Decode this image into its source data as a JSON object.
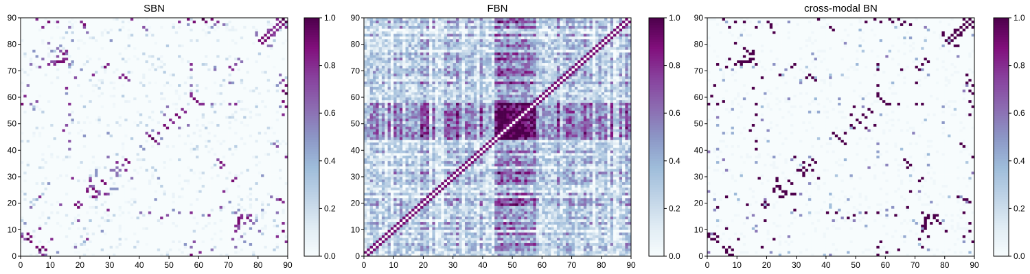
{
  "chart_data": [
    {
      "type": "heatmap",
      "title": "SBN",
      "xlim": [
        0,
        90
      ],
      "ylim": [
        0,
        90
      ],
      "xticks": [
        "0",
        "10",
        "20",
        "30",
        "40",
        "50",
        "60",
        "70",
        "80",
        "90"
      ],
      "yticks": [
        "0",
        "10",
        "20",
        "30",
        "40",
        "50",
        "60",
        "70",
        "80",
        "90"
      ],
      "colorbar": {
        "range": [
          0,
          1
        ],
        "ticks": [
          "0.0",
          "0.2",
          "0.4",
          "0.6",
          "0.8",
          "1.0"
        ],
        "colormap": "BuPu"
      },
      "nodes": 90,
      "pattern": "sparse",
      "connections": [
        [
          2,
          6,
          1.0
        ],
        [
          3,
          5,
          0.9
        ],
        [
          2,
          8,
          0.9
        ],
        [
          7,
          0,
          0.8
        ],
        [
          7,
          3,
          0.9
        ],
        [
          6,
          1,
          0.7
        ],
        [
          8,
          0,
          0.6
        ],
        [
          12,
          1,
          0.5
        ],
        [
          10,
          6,
          0.8
        ],
        [
          18,
          19,
          0.9
        ],
        [
          19,
          20,
          0.8
        ],
        [
          17,
          29,
          0.8
        ],
        [
          19,
          13,
          0.7
        ],
        [
          22,
          24,
          0.9
        ],
        [
          24,
          25,
          0.9
        ],
        [
          25,
          22,
          0.8
        ],
        [
          23,
          26,
          0.7
        ],
        [
          26,
          24,
          0.6
        ],
        [
          25,
          31,
          0.5
        ],
        [
          27,
          28,
          0.9
        ],
        [
          28,
          23,
          0.8
        ],
        [
          29,
          23,
          0.7
        ],
        [
          30,
          25,
          0.5
        ],
        [
          32,
          35,
          0.8
        ],
        [
          35,
          36,
          0.9
        ],
        [
          34,
          34,
          0.7
        ],
        [
          33,
          32,
          0.6
        ],
        [
          37,
          29,
          0.6
        ],
        [
          40,
          41,
          0.5
        ],
        [
          43,
          45,
          0.9
        ],
        [
          44,
          44,
          1.0
        ],
        [
          45,
          43,
          0.9
        ],
        [
          46,
          46,
          0.8
        ],
        [
          42,
          46,
          0.7
        ],
        [
          46,
          42,
          0.6
        ],
        [
          44,
          47,
          0.5
        ],
        [
          48,
          49,
          0.9
        ],
        [
          49,
          48,
          0.9
        ],
        [
          50,
          51,
          0.8
        ],
        [
          51,
          50,
          0.8
        ],
        [
          52,
          53,
          0.9
        ],
        [
          53,
          52,
          0.8
        ],
        [
          54,
          55,
          0.7
        ],
        [
          55,
          54,
          0.8
        ],
        [
          56,
          49,
          0.6
        ],
        [
          48,
          53,
          0.6
        ],
        [
          60,
          57,
          0.8
        ],
        [
          57,
          60,
          0.7
        ],
        [
          65,
          70,
          0.6
        ],
        [
          70,
          71,
          0.8
        ],
        [
          71,
          70,
          0.8
        ],
        [
          72,
          72,
          0.7
        ],
        [
          73,
          13,
          0.9
        ],
        [
          74,
          14,
          0.8
        ],
        [
          75,
          12,
          0.7
        ],
        [
          76,
          15,
          0.6
        ],
        [
          77,
          10,
          0.5
        ],
        [
          73,
          11,
          0.7
        ],
        [
          80,
          81,
          0.9
        ],
        [
          81,
          82,
          0.9
        ],
        [
          82,
          83,
          0.9
        ],
        [
          83,
          84,
          0.8
        ],
        [
          84,
          85,
          0.8
        ],
        [
          85,
          86,
          0.8
        ],
        [
          86,
          87,
          0.8
        ],
        [
          87,
          88,
          0.9
        ],
        [
          88,
          89,
          1.0
        ],
        [
          89,
          86,
          0.8
        ],
        [
          85,
          83,
          0.7
        ],
        [
          83,
          79,
          0.6
        ],
        [
          79,
          84,
          0.6
        ],
        [
          88,
          12,
          0.8
        ],
        [
          86,
          16,
          0.6
        ],
        [
          87,
          21,
          0.9
        ],
        [
          87,
          56,
          0.5
        ],
        [
          12,
          73,
          0.9
        ],
        [
          14,
          73,
          0.9
        ],
        [
          15,
          77,
          0.8
        ],
        [
          11,
          72,
          0.8
        ],
        [
          10,
          73,
          0.7
        ],
        [
          4,
          77,
          0.5
        ],
        [
          3,
          72,
          0.6
        ],
        [
          0,
          57,
          0.9
        ],
        [
          1,
          60,
          0.5
        ],
        [
          5,
          89,
          0.8
        ],
        [
          7,
          86,
          0.8
        ],
        [
          9,
          88,
          0.9
        ],
        [
          20,
          88,
          0.8
        ],
        [
          21,
          86,
          0.7
        ],
        [
          15,
          63,
          0.8
        ],
        [
          33,
          67,
          0.8
        ],
        [
          34,
          68,
          0.8
        ],
        [
          35,
          67,
          0.9
        ],
        [
          36,
          66,
          0.7
        ],
        [
          28,
          71,
          0.9
        ],
        [
          29,
          72,
          0.8
        ],
        [
          37,
          89,
          0.8
        ],
        [
          41,
          86,
          0.7
        ],
        [
          42,
          85,
          0.6
        ],
        [
          56,
          89,
          0.9
        ],
        [
          58,
          88,
          0.9
        ],
        [
          61,
          89,
          1.0
        ],
        [
          62,
          88,
          0.9
        ],
        [
          64,
          89,
          0.9
        ],
        [
          66,
          88,
          0.8
        ],
        [
          68,
          87,
          0.6
        ],
        [
          59,
          58,
          0.9
        ],
        [
          61,
          57,
          0.8
        ],
        [
          64,
          57,
          0.6
        ],
        [
          72,
          57,
          0.8
        ],
        [
          70,
          57,
          0.7
        ],
        [
          71,
          65,
          0.5
        ],
        [
          74,
          73,
          0.6
        ],
        [
          16,
          40,
          0.6
        ],
        [
          16,
          43,
          0.7
        ],
        [
          17,
          51,
          0.5
        ],
        [
          25,
          32,
          0.5
        ],
        [
          32,
          30,
          0.6
        ],
        [
          32,
          31,
          0.6
        ],
        [
          46,
          29,
          0.5
        ],
        [
          45,
          21,
          0.5
        ],
        [
          49,
          15,
          0.7
        ],
        [
          47,
          14,
          0.8
        ],
        [
          53,
          16,
          0.6
        ],
        [
          57,
          16,
          0.8
        ],
        [
          61,
          15,
          0.5
        ],
        [
          67,
          18,
          0.7
        ],
        [
          68,
          24,
          0.8
        ],
        [
          70,
          20,
          0.5
        ],
        [
          71,
          16,
          0.4
        ],
        [
          72,
          16,
          0.6
        ],
        [
          73,
          17,
          0.5
        ],
        [
          74,
          15,
          0.8
        ],
        [
          76,
          14,
          0.9
        ],
        [
          77,
          13,
          0.7
        ],
        [
          78,
          12,
          0.6
        ],
        [
          79,
          13,
          0.5
        ],
        [
          80,
          9,
          0.6
        ],
        [
          81,
          17,
          0.5
        ],
        [
          71,
          6,
          0.7
        ],
        [
          72,
          9,
          0.8
        ],
        [
          75,
          5,
          0.5
        ],
        [
          74,
          7,
          0.6
        ],
        [
          57,
          3,
          0.6
        ],
        [
          58,
          5,
          0.7
        ],
        [
          60,
          1,
          0.8
        ],
        [
          64,
          2,
          0.6
        ],
        [
          55,
          4,
          0.5
        ],
        [
          22,
          6,
          0.8
        ],
        [
          27,
          9,
          0.5
        ],
        [
          5,
          21,
          0.4
        ],
        [
          3,
          18,
          0.6
        ],
        [
          87,
          65,
          0.6
        ],
        [
          86,
          64,
          0.5
        ],
        [
          88,
          53,
          0.8
        ],
        [
          84,
          22,
          0.6
        ],
        [
          81,
          30,
          0.5
        ]
      ]
    },
    {
      "type": "heatmap",
      "title": "FBN",
      "xlim": [
        0,
        90
      ],
      "ylim": [
        0,
        90
      ],
      "xticks": [
        "0",
        "10",
        "20",
        "30",
        "40",
        "50",
        "60",
        "70",
        "80",
        "90"
      ],
      "yticks": [
        "0",
        "10",
        "20",
        "30",
        "40",
        "50",
        "60",
        "70",
        "80",
        "90"
      ],
      "colorbar": {
        "range": [
          0,
          1
        ],
        "ticks": [
          "0.0",
          "0.2",
          "0.4",
          "0.6",
          "0.8",
          "1.0"
        ],
        "colormap": "BuPu"
      },
      "nodes": 90,
      "pattern": "dense"
    },
    {
      "type": "heatmap",
      "title": "cross-modal BN",
      "xlim": [
        0,
        90
      ],
      "ylim": [
        0,
        90
      ],
      "xticks": [
        "0",
        "10",
        "20",
        "30",
        "40",
        "50",
        "60",
        "70",
        "80",
        "90"
      ],
      "yticks": [
        "0",
        "10",
        "20",
        "30",
        "40",
        "50",
        "60",
        "70",
        "80",
        "90"
      ],
      "colorbar": {
        "range": [
          0,
          1
        ],
        "ticks": [
          "0.0",
          "0.2",
          "0.4",
          "0.6",
          "0.8",
          "1.0"
        ],
        "colormap": "BuPu"
      },
      "nodes": 90,
      "pattern": "sparse-binary"
    }
  ]
}
